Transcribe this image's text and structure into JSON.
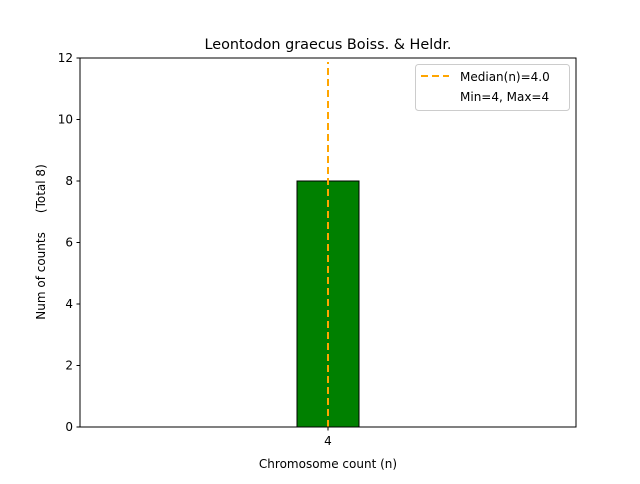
{
  "chart_data": {
    "type": "bar",
    "title": "Leontodon graecus Boiss. & Heldr.",
    "xlabel": "Chromosome count (n)",
    "ylabel": "Num of counts     (Total 8)",
    "categories": [
      4
    ],
    "values": [
      8
    ],
    "bar_width": 1,
    "xlim": [
      0,
      8
    ],
    "ylim": [
      0,
      12
    ],
    "xticks": [
      4
    ],
    "yticks": [
      0,
      2,
      4,
      6,
      8,
      10,
      12
    ],
    "grid": false,
    "bar_color": "#008000",
    "bar_edge_color": "#000000",
    "median": {
      "value": 4.0,
      "color": "#FFA500",
      "style": "dashed"
    },
    "legend": {
      "placement": "top-right",
      "entries": [
        "Median(n)=4.0",
        "Min=4, Max=4"
      ]
    }
  }
}
